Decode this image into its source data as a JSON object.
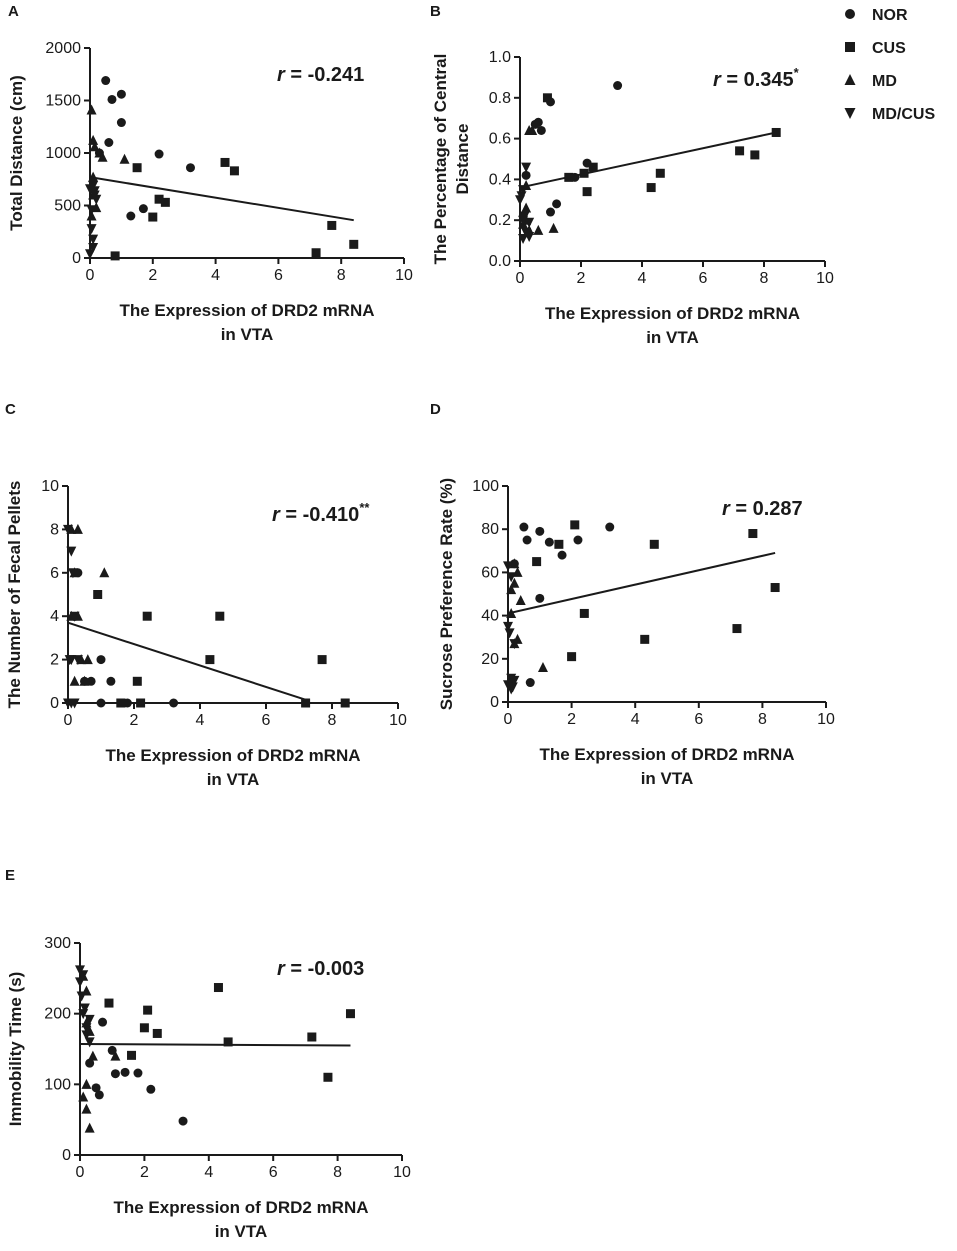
{
  "legend": {
    "items": [
      {
        "name": "NOR",
        "marker": "circle"
      },
      {
        "name": "CUS",
        "marker": "square"
      },
      {
        "name": "MD",
        "marker": "triangle"
      },
      {
        "name": "MD/CUS",
        "marker": "triangle-down"
      }
    ]
  },
  "chart_data": [
    {
      "id": "A",
      "type": "scatter",
      "panel_label": "A",
      "xlabel": [
        "The Expression of DRD2 mRNA",
        "in VTA"
      ],
      "ylabel": [
        "Total Distance (cm)"
      ],
      "xlim": [
        0,
        10
      ],
      "ylim": [
        0,
        2000
      ],
      "xticks": [
        "0",
        "2",
        "4",
        "6",
        "8",
        "10"
      ],
      "yticks": [
        "0",
        "500",
        "1000",
        "1500",
        "2000"
      ],
      "r_label": "r",
      "r_value": " = -0.241",
      "r_sup": "",
      "fit": {
        "x": [
          0,
          8.4
        ],
        "y": [
          770,
          360
        ]
      },
      "series": [
        {
          "name": "NOR",
          "marker": "circle",
          "points": [
            [
              0.5,
              1690
            ],
            [
              0.7,
              1510
            ],
            [
              1.0,
              1560
            ],
            [
              1.0,
              1290
            ],
            [
              0.3,
              1000
            ],
            [
              0.6,
              1100
            ],
            [
              2.2,
              990
            ],
            [
              3.2,
              860
            ],
            [
              1.3,
              400
            ],
            [
              1.7,
              470
            ]
          ]
        },
        {
          "name": "CUS",
          "marker": "square",
          "points": [
            [
              1.5,
              860
            ],
            [
              2.2,
              560
            ],
            [
              2.4,
              530
            ],
            [
              2.0,
              390
            ],
            [
              0.8,
              20
            ],
            [
              4.3,
              910
            ],
            [
              4.6,
              830
            ],
            [
              7.7,
              310
            ],
            [
              7.2,
              50
            ],
            [
              8.4,
              130
            ]
          ]
        },
        {
          "name": "MD",
          "marker": "triangle",
          "points": [
            [
              0.05,
              1410
            ],
            [
              0.1,
              1120
            ],
            [
              0.15,
              1060
            ],
            [
              0.3,
              1000
            ],
            [
              0.4,
              960
            ],
            [
              1.1,
              940
            ],
            [
              0.1,
              770
            ],
            [
              0.1,
              600
            ],
            [
              0.2,
              480
            ],
            [
              0.05,
              400
            ]
          ]
        },
        {
          "name": "MD/CUS",
          "marker": "triangle-down",
          "points": [
            [
              0.0,
              660
            ],
            [
              0.1,
              690
            ],
            [
              0.15,
              640
            ],
            [
              0.2,
              560
            ],
            [
              0.05,
              460
            ],
            [
              0.05,
              280
            ],
            [
              0.1,
              180
            ],
            [
              0.1,
              100
            ],
            [
              0.0,
              40
            ],
            [
              0.15,
              600
            ]
          ]
        }
      ]
    },
    {
      "id": "B",
      "type": "scatter",
      "panel_label": "B",
      "xlabel": [
        "The Expression of DRD2 mRNA",
        "in VTA"
      ],
      "ylabel": [
        "The Percentage of Central",
        "Distance"
      ],
      "xlim": [
        0,
        10
      ],
      "ylim": [
        0.0,
        1.0
      ],
      "xticks": [
        "0",
        "2",
        "4",
        "6",
        "8",
        "10"
      ],
      "yticks": [
        "0.0",
        "0.2",
        "0.4",
        "0.6",
        "0.8",
        "1.0"
      ],
      "r_label": "r",
      "r_value": " = 0.345",
      "r_sup": "*",
      "fit": {
        "x": [
          0,
          8.4
        ],
        "y": [
          0.36,
          0.63
        ]
      },
      "series": [
        {
          "name": "NOR",
          "marker": "circle",
          "points": [
            [
              3.2,
              0.86
            ],
            [
              1.0,
              0.78
            ],
            [
              0.5,
              0.67
            ],
            [
              0.6,
              0.68
            ],
            [
              0.7,
              0.64
            ],
            [
              0.2,
              0.42
            ],
            [
              2.2,
              0.48
            ],
            [
              1.8,
              0.41
            ],
            [
              1.2,
              0.28
            ],
            [
              1.0,
              0.24
            ]
          ]
        },
        {
          "name": "CUS",
          "marker": "square",
          "points": [
            [
              0.9,
              0.8
            ],
            [
              8.4,
              0.63
            ],
            [
              7.2,
              0.54
            ],
            [
              7.7,
              0.52
            ],
            [
              4.6,
              0.43
            ],
            [
              4.3,
              0.36
            ],
            [
              2.4,
              0.46
            ],
            [
              2.1,
              0.43
            ],
            [
              1.6,
              0.41
            ],
            [
              2.2,
              0.34
            ]
          ]
        },
        {
          "name": "MD",
          "marker": "triangle",
          "points": [
            [
              0.3,
              0.64
            ],
            [
              0.4,
              0.64
            ],
            [
              0.2,
              0.37
            ],
            [
              0.1,
              0.22
            ],
            [
              0.2,
              0.2
            ],
            [
              1.1,
              0.16
            ],
            [
              0.6,
              0.15
            ],
            [
              0.1,
              0.18
            ],
            [
              0.3,
              0.15
            ],
            [
              0.2,
              0.26
            ]
          ]
        },
        {
          "name": "MD/CUS",
          "marker": "triangle-down",
          "points": [
            [
              0.2,
              0.46
            ],
            [
              0.1,
              0.35
            ],
            [
              0.05,
              0.32
            ],
            [
              0.0,
              0.3
            ],
            [
              0.15,
              0.22
            ],
            [
              0.1,
              0.2
            ],
            [
              0.3,
              0.19
            ],
            [
              0.3,
              0.12
            ],
            [
              0.1,
              0.11
            ],
            [
              0.2,
              0.14
            ]
          ]
        }
      ]
    },
    {
      "id": "C",
      "type": "scatter",
      "panel_label": "C",
      "xlabel": [
        "The Expression of DRD2 mRNA",
        "in VTA"
      ],
      "ylabel": [
        "The Number of Fecal Pellets"
      ],
      "xlim": [
        0,
        10
      ],
      "ylim": [
        0,
        10
      ],
      "xticks": [
        "0",
        "2",
        "4",
        "6",
        "8",
        "10"
      ],
      "yticks": [
        "0",
        "2",
        "4",
        "6",
        "8",
        "10"
      ],
      "r_label": "r",
      "r_value": " = -0.410",
      "r_sup": "**",
      "fit": {
        "x": [
          0,
          7.3
        ],
        "y": [
          3.7,
          0.1
        ]
      },
      "series": [
        {
          "name": "NOR",
          "marker": "circle",
          "points": [
            [
              0.3,
              6
            ],
            [
              1.0,
              2
            ],
            [
              0.5,
              1
            ],
            [
              0.7,
              1
            ],
            [
              1.0,
              0
            ],
            [
              1.3,
              1
            ],
            [
              1.7,
              0
            ],
            [
              2.2,
              0
            ],
            [
              3.2,
              0
            ],
            [
              1.8,
              0
            ]
          ]
        },
        {
          "name": "CUS",
          "marker": "square",
          "points": [
            [
              0.9,
              5
            ],
            [
              2.4,
              4
            ],
            [
              4.6,
              4
            ],
            [
              4.3,
              2
            ],
            [
              7.7,
              2
            ],
            [
              2.1,
              1
            ],
            [
              1.6,
              0
            ],
            [
              2.2,
              0
            ],
            [
              7.2,
              0
            ],
            [
              8.4,
              0
            ]
          ]
        },
        {
          "name": "MD",
          "marker": "triangle",
          "points": [
            [
              0.1,
              8
            ],
            [
              0.3,
              8
            ],
            [
              1.1,
              6
            ],
            [
              0.2,
              6
            ],
            [
              0.1,
              4
            ],
            [
              0.3,
              4
            ],
            [
              0.4,
              2
            ],
            [
              0.5,
              1
            ],
            [
              0.2,
              1
            ],
            [
              0.6,
              2
            ]
          ]
        },
        {
          "name": "MD/CUS",
          "marker": "triangle-down",
          "points": [
            [
              0.0,
              8
            ],
            [
              0.1,
              7
            ],
            [
              0.15,
              6
            ],
            [
              0.2,
              4
            ],
            [
              0.1,
              2
            ],
            [
              0.05,
              2
            ],
            [
              0.3,
              2
            ],
            [
              0.0,
              0
            ],
            [
              0.1,
              0
            ],
            [
              0.2,
              0
            ]
          ]
        }
      ]
    },
    {
      "id": "D",
      "type": "scatter",
      "panel_label": "D",
      "xlabel": [
        "The Expression of DRD2 mRNA",
        "in VTA"
      ],
      "ylabel": [
        "Sucrose Preference Rate (%)"
      ],
      "xlim": [
        0,
        10
      ],
      "ylim": [
        0,
        100
      ],
      "xticks": [
        "0",
        "2",
        "4",
        "6",
        "8",
        "10"
      ],
      "yticks": [
        "0",
        "20",
        "40",
        "60",
        "80",
        "100"
      ],
      "r_label": "r",
      "r_value": " = 0.287",
      "r_sup": "",
      "fit": {
        "x": [
          0,
          8.4
        ],
        "y": [
          41,
          69
        ]
      },
      "series": [
        {
          "name": "NOR",
          "marker": "circle",
          "points": [
            [
              0.5,
              81
            ],
            [
              1.0,
              79
            ],
            [
              3.2,
              81
            ],
            [
              0.6,
              75
            ],
            [
              1.3,
              74
            ],
            [
              2.2,
              75
            ],
            [
              1.7,
              68
            ],
            [
              0.2,
              64
            ],
            [
              1.0,
              48
            ],
            [
              0.7,
              9
            ]
          ]
        },
        {
          "name": "CUS",
          "marker": "square",
          "points": [
            [
              2.1,
              82
            ],
            [
              7.7,
              78
            ],
            [
              1.6,
              73
            ],
            [
              4.6,
              73
            ],
            [
              0.9,
              65
            ],
            [
              8.4,
              53
            ],
            [
              2.4,
              41
            ],
            [
              4.3,
              29
            ],
            [
              7.2,
              34
            ],
            [
              2.0,
              21
            ]
          ]
        },
        {
          "name": "MD",
          "marker": "triangle",
          "points": [
            [
              0.2,
              64
            ],
            [
              0.3,
              60
            ],
            [
              0.2,
              55
            ],
            [
              0.1,
              52
            ],
            [
              0.4,
              47
            ],
            [
              0.1,
              41
            ],
            [
              0.3,
              29
            ],
            [
              0.2,
              27
            ],
            [
              1.1,
              16
            ],
            [
              0.1,
              10
            ]
          ]
        },
        {
          "name": "MD/CUS",
          "marker": "triangle-down",
          "points": [
            [
              0.0,
              63
            ],
            [
              0.1,
              58
            ],
            [
              0.0,
              35
            ],
            [
              0.05,
              32
            ],
            [
              0.2,
              27
            ],
            [
              0.1,
              11
            ],
            [
              0.2,
              10
            ],
            [
              0.0,
              8
            ],
            [
              0.1,
              6
            ],
            [
              0.15,
              7
            ]
          ]
        }
      ]
    },
    {
      "id": "E",
      "type": "scatter",
      "panel_label": "E",
      "xlabel": [
        "The Expression of DRD2 mRNA",
        "in VTA"
      ],
      "ylabel": [
        "Immobility Time (s)"
      ],
      "xlim": [
        0,
        10
      ],
      "ylim": [
        0,
        300
      ],
      "xticks": [
        "0",
        "2",
        "4",
        "6",
        "8",
        "10"
      ],
      "yticks": [
        "0",
        "100",
        "200",
        "300"
      ],
      "r_label": "r",
      "r_value": " = -0.003",
      "r_sup": "",
      "fit": {
        "x": [
          0,
          8.4
        ],
        "y": [
          157,
          155
        ]
      },
      "series": [
        {
          "name": "NOR",
          "marker": "circle",
          "points": [
            [
              0.7,
              188
            ],
            [
              0.3,
              130
            ],
            [
              0.5,
              95
            ],
            [
              0.6,
              85
            ],
            [
              1.0,
              148
            ],
            [
              1.1,
              115
            ],
            [
              1.4,
              117
            ],
            [
              1.8,
              116
            ],
            [
              2.2,
              93
            ],
            [
              3.2,
              48
            ]
          ]
        },
        {
          "name": "CUS",
          "marker": "square",
          "points": [
            [
              0.9,
              215
            ],
            [
              2.1,
              205
            ],
            [
              4.3,
              237
            ],
            [
              8.4,
              200
            ],
            [
              2.4,
              172
            ],
            [
              2.0,
              180
            ],
            [
              1.6,
              141
            ],
            [
              7.2,
              167
            ],
            [
              4.6,
              160
            ],
            [
              7.7,
              110
            ]
          ]
        },
        {
          "name": "MD",
          "marker": "triangle",
          "points": [
            [
              0.1,
              253
            ],
            [
              0.2,
              232
            ],
            [
              0.2,
              187
            ],
            [
              0.3,
              175
            ],
            [
              0.4,
              140
            ],
            [
              1.1,
              140
            ],
            [
              0.2,
              100
            ],
            [
              0.1,
              82
            ],
            [
              0.2,
              65
            ],
            [
              0.3,
              38
            ]
          ]
        },
        {
          "name": "MD/CUS",
          "marker": "triangle-down",
          "points": [
            [
              0.0,
              262
            ],
            [
              0.1,
              255
            ],
            [
              0.05,
              225
            ],
            [
              0.1,
              200
            ],
            [
              0.3,
              192
            ],
            [
              0.2,
              180
            ],
            [
              0.3,
              160
            ],
            [
              0.0,
              245
            ],
            [
              0.15,
              208
            ],
            [
              0.2,
              170
            ]
          ]
        }
      ]
    }
  ]
}
